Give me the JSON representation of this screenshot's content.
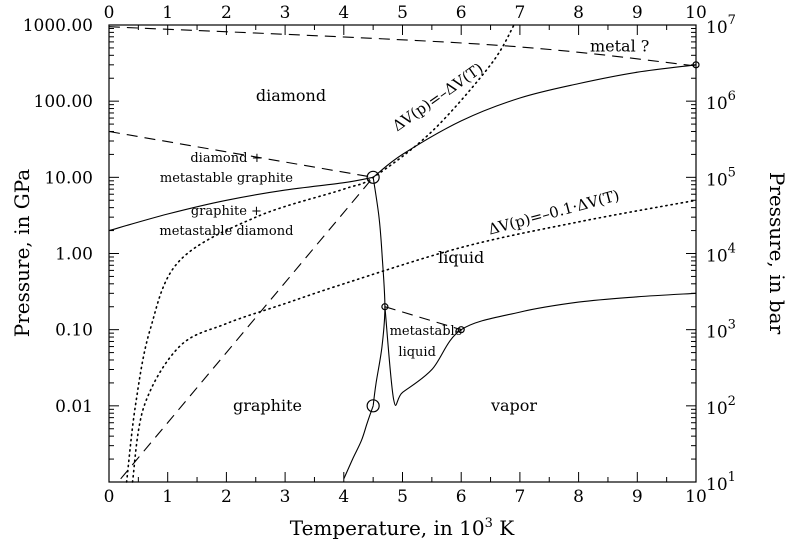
{
  "chart_data": {
    "type": "line",
    "title": "",
    "xlabel": "Temperature, in 10",
    "xlabel_sup": "3",
    "xlabel_unit": " K",
    "ylabel_left": "Pressure, in GPa",
    "ylabel_right": "Pressure, in bar",
    "x_ticks": [
      "0",
      "1",
      "2",
      "3",
      "4",
      "5",
      "6",
      "7",
      "8",
      "9",
      "10"
    ],
    "xlim": [
      0,
      10
    ],
    "y_scale": "log",
    "ylim": [
      0.001,
      1000
    ],
    "y_ticks_left": [
      {
        "value": 0.01,
        "label": "0.01"
      },
      {
        "value": 0.1,
        "label": "0.10"
      },
      {
        "value": 1,
        "label": "1.00"
      },
      {
        "value": 10,
        "label": "10.00"
      },
      {
        "value": 100,
        "label": "100.00"
      },
      {
        "value": 1000,
        "label": "1000.00"
      }
    ],
    "y_ticks_right": [
      {
        "value": 0.001,
        "base": "10",
        "exp": "1"
      },
      {
        "value": 0.01,
        "base": "10",
        "exp": "2"
      },
      {
        "value": 0.1,
        "base": "10",
        "exp": "3"
      },
      {
        "value": 1,
        "base": "10",
        "exp": "4"
      },
      {
        "value": 10,
        "base": "10",
        "exp": "5"
      },
      {
        "value": 100,
        "base": "10",
        "exp": "6"
      },
      {
        "value": 1000,
        "base": "10",
        "exp": "7"
      }
    ],
    "series": [
      {
        "style": "solid",
        "points": [
          [
            0.0,
            2.0
          ],
          [
            1.0,
            3.3
          ],
          [
            2.0,
            5.0
          ],
          [
            3.0,
            6.8
          ],
          [
            4.0,
            8.5
          ],
          [
            4.5,
            10.0
          ]
        ]
      },
      {
        "style": "solid",
        "points": [
          [
            4.5,
            10.0
          ],
          [
            5.0,
            20.0
          ],
          [
            6.0,
            55.0
          ],
          [
            7.0,
            110.0
          ],
          [
            8.0,
            170.0
          ],
          [
            9.0,
            240.0
          ],
          [
            10.0,
            300.0
          ]
        ]
      },
      {
        "style": "solid",
        "points": [
          [
            4.5,
            10.0
          ],
          [
            4.6,
            3.0
          ],
          [
            4.65,
            1.0
          ],
          [
            4.7,
            0.2
          ],
          [
            4.65,
            0.06
          ],
          [
            4.55,
            0.02
          ],
          [
            4.5,
            0.01
          ]
        ]
      },
      {
        "style": "solid",
        "points": [
          [
            4.5,
            0.01
          ],
          [
            4.4,
            0.006
          ],
          [
            4.3,
            0.0035
          ],
          [
            4.15,
            0.002
          ],
          [
            4.0,
            0.0011
          ]
        ]
      },
      {
        "style": "solid",
        "points": [
          [
            4.7,
            0.2
          ],
          [
            4.85,
            0.012
          ],
          [
            5.0,
            0.015
          ],
          [
            5.5,
            0.03
          ],
          [
            6.0,
            0.1
          ],
          [
            7.0,
            0.17
          ],
          [
            8.0,
            0.23
          ],
          [
            9.0,
            0.27
          ],
          [
            10.0,
            0.3
          ]
        ]
      },
      {
        "style": "dashed",
        "points": [
          [
            0.0,
            40.0
          ],
          [
            4.5,
            10.0
          ]
        ]
      },
      {
        "style": "dashed",
        "points": [
          [
            0.2,
            0.0011
          ],
          [
            4.5,
            10.0
          ]
        ]
      },
      {
        "style": "dashed",
        "points": [
          [
            4.7,
            0.2
          ],
          [
            6.0,
            0.1
          ]
        ]
      },
      {
        "style": "dashed",
        "points": [
          [
            0.0,
            950.0
          ],
          [
            6.5,
            550.0
          ],
          [
            10.0,
            290.0
          ]
        ]
      },
      {
        "style": "dotted",
        "points": [
          [
            0.3,
            0.001
          ],
          [
            0.45,
            0.01
          ],
          [
            0.7,
            0.1
          ],
          [
            1.2,
            0.8
          ],
          [
            2.5,
            3.0
          ],
          [
            4.0,
            7.0
          ],
          [
            4.5,
            10.0
          ],
          [
            5.5,
            40.0
          ],
          [
            6.5,
            300.0
          ],
          [
            6.9,
            1000.0
          ]
        ]
      },
      {
        "style": "dotted",
        "points": [
          [
            0.4,
            0.001
          ],
          [
            0.6,
            0.01
          ],
          [
            1.2,
            0.06
          ],
          [
            2.0,
            0.12
          ],
          [
            3.0,
            0.22
          ],
          [
            4.0,
            0.4
          ],
          [
            6.0,
            1.2
          ],
          [
            8.0,
            2.6
          ],
          [
            10.0,
            5.0
          ]
        ]
      }
    ],
    "markers": [
      {
        "x": 4.5,
        "y": 10.0,
        "size": "large"
      },
      {
        "x": 4.5,
        "y": 0.01,
        "size": "large"
      },
      {
        "x": 4.7,
        "y": 0.2,
        "size": "small"
      },
      {
        "x": 6.0,
        "y": 0.1,
        "size": "small"
      },
      {
        "x": 10.0,
        "y": 300.0,
        "size": "small"
      }
    ],
    "annotations": [
      {
        "x": 3.1,
        "y": 100.0,
        "text": "diamond",
        "class": "region-label",
        "anchor": "middle"
      },
      {
        "x": 6.0,
        "y": 0.75,
        "text": "liquid",
        "class": "region-label",
        "anchor": "middle"
      },
      {
        "x": 2.7,
        "y": 0.0085,
        "text": "graphite",
        "class": "region-label",
        "anchor": "middle"
      },
      {
        "x": 6.9,
        "y": 0.0085,
        "text": "vapor",
        "class": "region-label",
        "anchor": "middle"
      },
      {
        "x": 8.7,
        "y": 450.0,
        "text": "metal ?",
        "class": "region-label",
        "anchor": "middle"
      },
      {
        "x": 2.0,
        "y": 16.0,
        "text": "diamond +",
        "class": "small-label",
        "anchor": "middle"
      },
      {
        "x": 2.0,
        "y": 8.7,
        "text": "metastable graphite",
        "class": "small-label",
        "anchor": "middle"
      },
      {
        "x": 2.0,
        "y": 3.2,
        "text": "graphite +",
        "class": "small-label",
        "anchor": "middle"
      },
      {
        "x": 2.0,
        "y": 1.75,
        "text": "metastable diamond",
        "class": "small-label",
        "anchor": "middle"
      },
      {
        "x": 5.4,
        "y": 0.085,
        "text": "metastable",
        "class": "small-label",
        "anchor": "middle"
      },
      {
        "x": 5.25,
        "y": 0.045,
        "text": "liquid",
        "class": "small-label",
        "anchor": "middle"
      }
    ],
    "rotated_annotations": [
      {
        "x": 5.65,
        "y": 100.0,
        "text": "ΔV(p)=–ΔV(T)",
        "angle": -35
      },
      {
        "x": 7.6,
        "y": 3.0,
        "text": "ΔV(p)=–0.1·ΔV(T)",
        "angle": -15
      }
    ]
  }
}
